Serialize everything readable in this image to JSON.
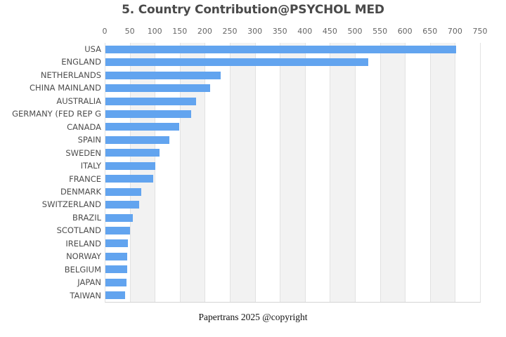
{
  "header": {
    "title": "5. Country Contribution@PSYCHOL MED"
  },
  "footer": {
    "text": "Papertrans 2025 @copyright"
  },
  "chart_data": {
    "type": "bar",
    "orientation": "horizontal",
    "title": "5. Country Contribution@PSYCHOL MED",
    "xlabel": "",
    "ylabel": "",
    "xlim": [
      0,
      750
    ],
    "x_ticks": [
      0,
      50,
      100,
      150,
      200,
      250,
      300,
      350,
      400,
      450,
      500,
      550,
      600,
      650,
      700,
      750
    ],
    "x_axis_position": "top",
    "grid": "alternating-vertical-bands-every-50",
    "legend_position": "none",
    "categories": [
      "USA",
      "ENGLAND",
      "NETHERLANDS",
      "CHINA MAINLAND",
      "AUSTRALIA",
      "GERMANY (FED REP G",
      "CANADA",
      "SPAIN",
      "SWEDEN",
      "ITALY",
      "FRANCE",
      "DENMARK",
      "SWITZERLAND",
      "BRAZIL",
      "SCOTLAND",
      "IRELAND",
      "NORWAY",
      "BELGIUM",
      "JAPAN",
      "TAIWAN"
    ],
    "values": [
      701,
      525,
      231,
      209,
      181,
      171,
      147,
      128,
      108,
      100,
      95,
      71,
      68,
      55,
      49,
      45,
      44,
      43,
      42,
      39
    ],
    "colors": {
      "bar": "#62a4ef",
      "band_light": "#f2f2f2",
      "band_white": "#ffffff",
      "grid_line": "#e2e2e2",
      "axis_line": "#d4d4d4",
      "title_text": "#4a4a4a",
      "tick_text": "#666666",
      "label_text": "#4d4d4d",
      "footer_text": "#111111"
    }
  }
}
